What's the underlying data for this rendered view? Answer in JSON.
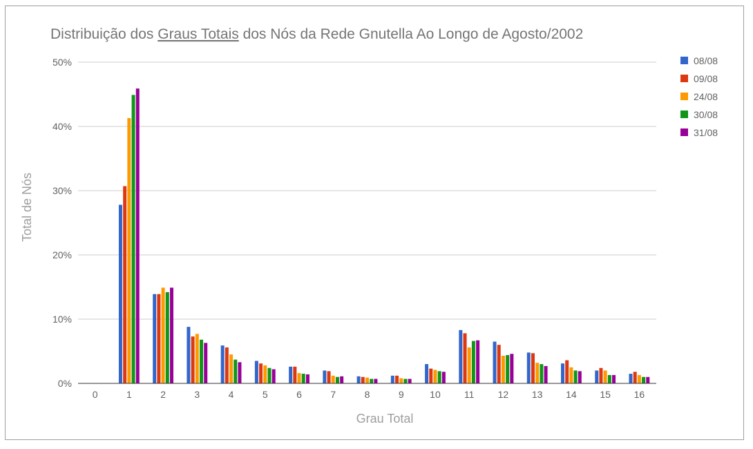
{
  "chart_data": {
    "type": "bar",
    "title": "Distribuição dos Graus Totais dos Nós da Rede Gnutella Ao Longo de Agosto/2002",
    "title_parts": {
      "before": "Distribuição dos ",
      "underlined": "Graus Totais",
      "after": " dos Nós da Rede Gnutella Ao Longo de Agosto/2002"
    },
    "xlabel": "Grau Total",
    "ylabel": "Total de Nós",
    "ylim": [
      0,
      50
    ],
    "y_ticks": [
      "0%",
      "10%",
      "20%",
      "30%",
      "40%",
      "50%"
    ],
    "y_tick_values": [
      0,
      10,
      20,
      30,
      40,
      50
    ],
    "grid": true,
    "legend_position": "right",
    "categories": [
      "0",
      "1",
      "2",
      "3",
      "4",
      "5",
      "6",
      "7",
      "8",
      "9",
      "10",
      "11",
      "12",
      "13",
      "14",
      "15",
      "16"
    ],
    "series": [
      {
        "name": "08/08",
        "color": "#3366cc",
        "values": [
          0,
          27.8,
          13.9,
          8.8,
          5.9,
          3.5,
          2.6,
          2.0,
          1.1,
          1.2,
          3.0,
          8.3,
          6.5,
          4.8,
          3.1,
          2.0,
          1.5
        ]
      },
      {
        "name": "09/08",
        "color": "#dc3912",
        "values": [
          0,
          30.7,
          13.9,
          7.3,
          5.6,
          3.1,
          2.6,
          1.9,
          1.0,
          1.2,
          2.3,
          7.8,
          6.0,
          4.7,
          3.6,
          2.4,
          1.8
        ]
      },
      {
        "name": "24/08",
        "color": "#ff9900",
        "values": [
          0,
          41.3,
          14.9,
          7.7,
          4.5,
          2.8,
          1.6,
          1.2,
          0.9,
          0.8,
          2.1,
          5.6,
          4.3,
          3.2,
          2.5,
          2.0,
          1.3
        ]
      },
      {
        "name": "30/08",
        "color": "#109618",
        "values": [
          0,
          44.9,
          14.2,
          6.8,
          3.7,
          2.4,
          1.5,
          1.0,
          0.7,
          0.7,
          1.9,
          6.6,
          4.4,
          3.0,
          2.0,
          1.3,
          1.0
        ]
      },
      {
        "name": "31/08",
        "color": "#990099",
        "values": [
          0,
          45.9,
          14.9,
          6.3,
          3.3,
          2.2,
          1.4,
          1.1,
          0.7,
          0.7,
          1.8,
          6.7,
          4.6,
          2.7,
          1.9,
          1.3,
          1.0
        ]
      }
    ]
  }
}
